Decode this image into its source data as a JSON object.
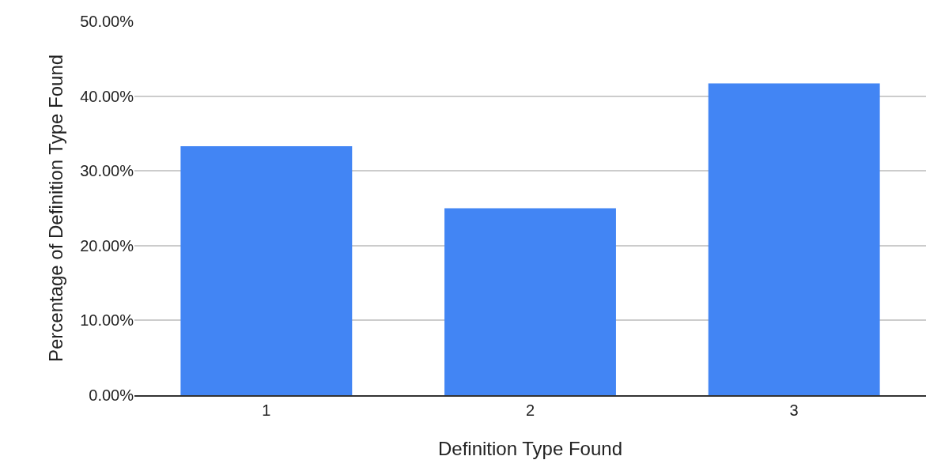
{
  "chart_data": {
    "type": "bar",
    "xlabel": "Definition Type Found",
    "ylabel": "Percentage of Definition Type Found",
    "categories": [
      "1",
      "2",
      "3"
    ],
    "values": [
      33.3,
      25.0,
      41.7
    ],
    "color": "#4285f4",
    "ylim": [
      0,
      50
    ],
    "yticks": [
      {
        "value": 0,
        "label": "0.00%"
      },
      {
        "value": 10,
        "label": "10.00%"
      },
      {
        "value": 20,
        "label": "20.00%"
      },
      {
        "value": 30,
        "label": "30.00%"
      },
      {
        "value": 40,
        "label": "40.00%"
      },
      {
        "value": 50,
        "label": "50.00%"
      }
    ],
    "grid": "y",
    "legend": false
  }
}
